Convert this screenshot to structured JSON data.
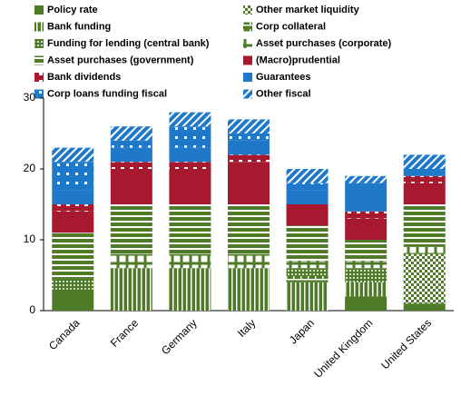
{
  "chart_data": {
    "type": "stacked_bar",
    "categories": [
      "Canada",
      "France",
      "Germany",
      "Italy",
      "Japan",
      "United Kingdom",
      "United States"
    ],
    "series": [
      {
        "name": "Policy rate",
        "color": "#4f7a28",
        "values": [
          3,
          0,
          0,
          0,
          0,
          2,
          1
        ]
      },
      {
        "name": "Other market liquidity",
        "color": "#4f7a28",
        "values": [
          0,
          0,
          0,
          0,
          0,
          0,
          7
        ]
      },
      {
        "name": "Bank funding",
        "color": "#4f7a28",
        "values": [
          0,
          6,
          6,
          6,
          4,
          2,
          0
        ]
      },
      {
        "name": "Corp collateral",
        "color": "#4f7a28",
        "values": [
          0,
          0,
          0,
          0,
          1,
          0,
          0
        ]
      },
      {
        "name": "Funding for lending (central bank)",
        "color": "#4f7a28",
        "values": [
          1.5,
          0,
          0,
          0,
          1,
          2,
          0
        ]
      },
      {
        "name": "Asset purchases (corporate)",
        "color": "#4f7a28",
        "values": [
          0,
          2,
          2,
          2,
          1,
          1,
          1
        ]
      },
      {
        "name": "Asset purchases (government)",
        "color": "#4f7a28",
        "values": [
          6.5,
          7,
          7,
          7,
          5,
          3,
          6
        ]
      },
      {
        "name": "(Macro)prudential",
        "color": "#a6192e",
        "values": [
          3,
          5,
          5,
          6,
          3,
          3,
          3
        ]
      },
      {
        "name": "Bank dividends",
        "color": "#a6192e",
        "values": [
          1,
          1,
          1,
          1,
          0,
          1,
          1
        ]
      },
      {
        "name": "Guarantees",
        "color": "#1f78c8",
        "values": [
          2,
          2,
          2,
          2,
          2,
          4,
          1
        ]
      },
      {
        "name": "Corp loans funding fiscal",
        "color": "#1f78c8",
        "values": [
          4,
          1,
          3,
          1,
          1,
          0,
          0
        ]
      },
      {
        "name": "Other fiscal",
        "color": "#1f78c8",
        "values": [
          2,
          2,
          2,
          2,
          2,
          1,
          2
        ]
      }
    ],
    "ylim": [
      0,
      30
    ],
    "yticks": [
      0,
      10,
      20,
      30
    ],
    "grid": false
  }
}
